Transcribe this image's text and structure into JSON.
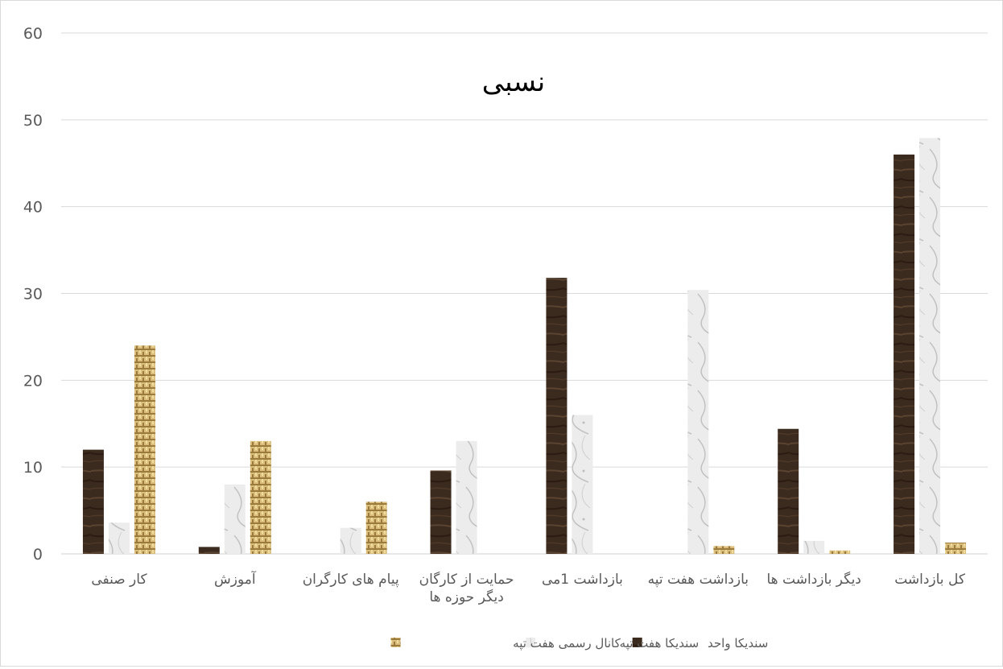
{
  "chart_data": {
    "type": "bar",
    "title": "نسبی",
    "categories": [
      [
        "کار صنفی"
      ],
      [
        "آموزش"
      ],
      [
        "پیام های کارگران"
      ],
      [
        "حمایت از کارگان",
        "دیگر حوزه ها"
      ],
      [
        "بازداشت 1می"
      ],
      [
        "بازداشت هفت تپه"
      ],
      [
        "دیگر بازداشت ها"
      ],
      [
        "کل بازداشت"
      ]
    ],
    "series": [
      {
        "name": "سندیکا واحد",
        "color": "#3b2a1e",
        "values": [
          12,
          0.8,
          0,
          9.6,
          31.8,
          0,
          14.4,
          46
        ]
      },
      {
        "name": "سندیکا هفت تپه",
        "color": "#e6e6e6",
        "values": [
          3.6,
          8,
          3,
          13,
          16,
          30.4,
          1.5,
          47.9
        ]
      },
      {
        "name": "کانال رسمی هفت تپه",
        "color": "#c8a45c",
        "values": [
          24,
          13,
          6,
          0,
          0,
          0.9,
          0.4,
          1.3
        ]
      }
    ],
    "ylim": [
      0,
      60
    ],
    "yticks": [
      0,
      10,
      20,
      30,
      40,
      50,
      60
    ],
    "grid": true,
    "legend_position": "bottom"
  }
}
